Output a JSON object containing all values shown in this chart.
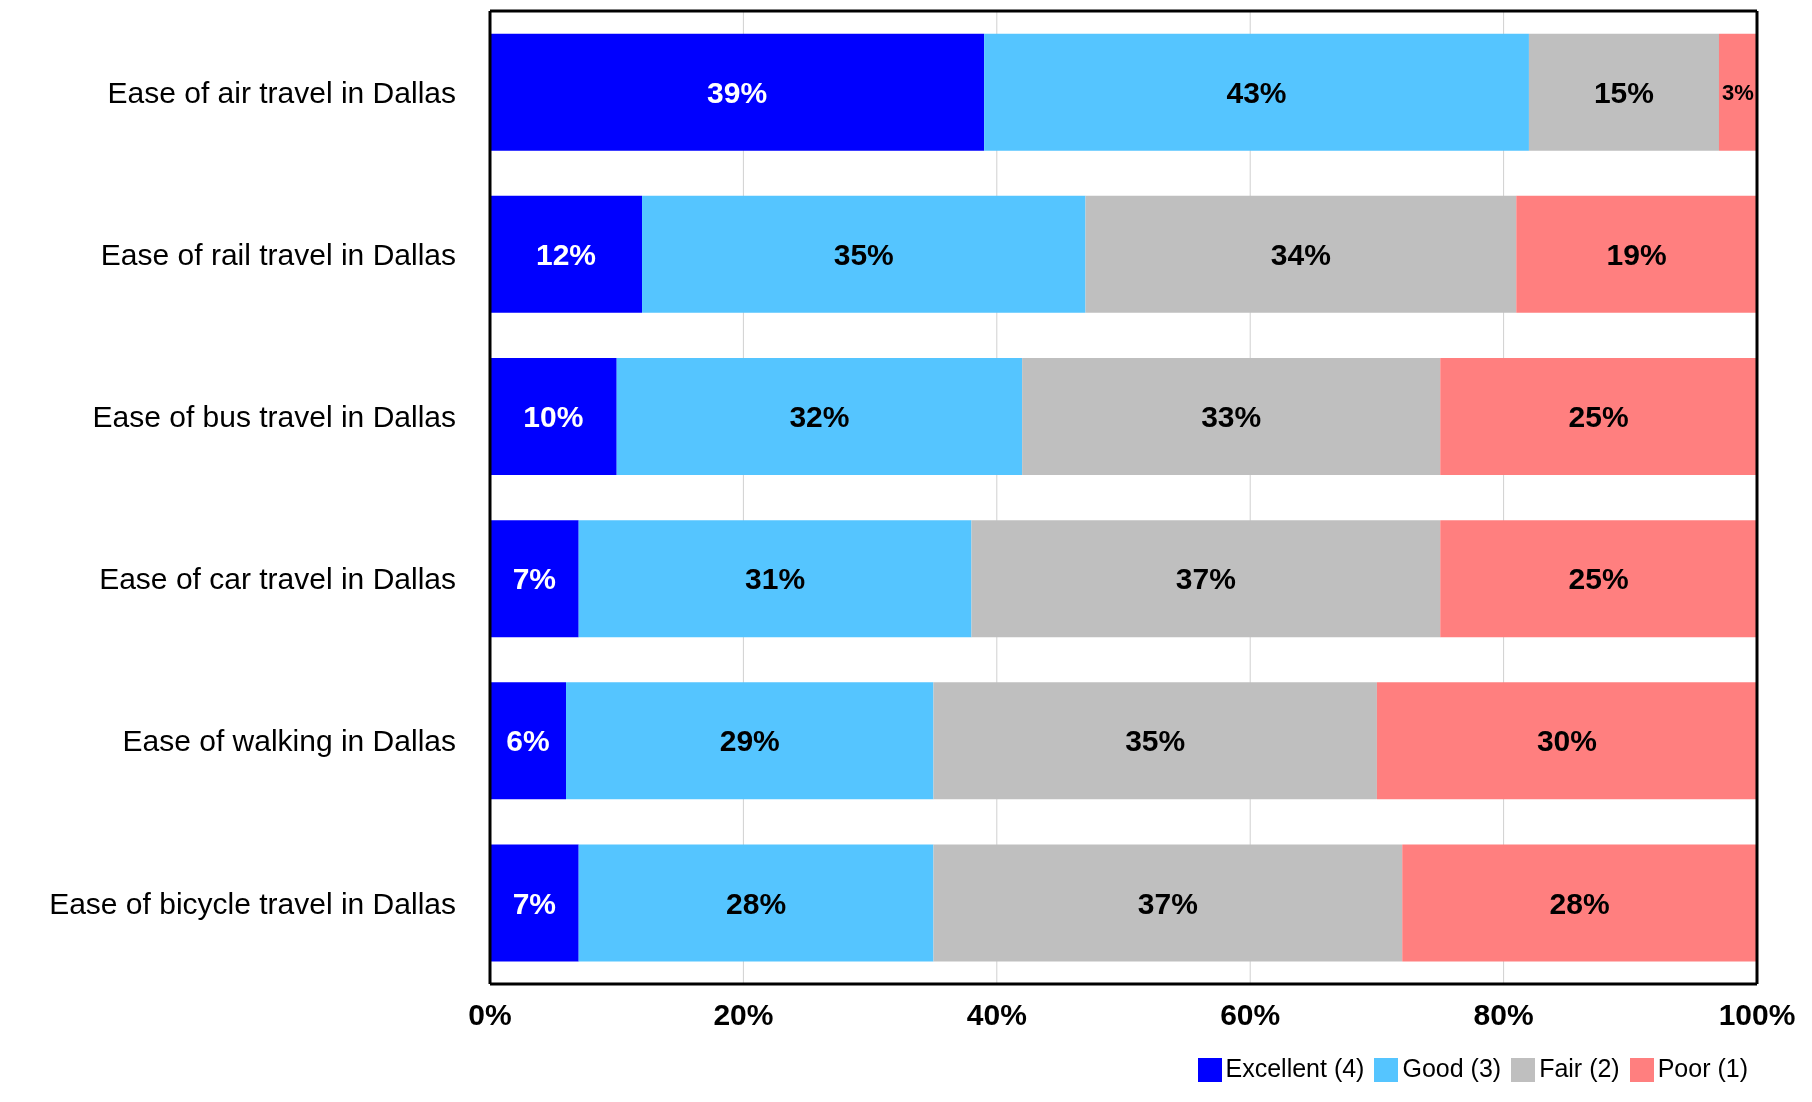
{
  "chart_data": {
    "type": "bar",
    "orientation": "horizontal",
    "stacked": true,
    "categories": [
      "Ease of air travel in Dallas",
      "Ease of rail travel in Dallas",
      "Ease of bus travel in Dallas",
      "Ease of car travel in Dallas",
      "Ease of walking in Dallas",
      "Ease of bicycle travel in Dallas"
    ],
    "series": [
      {
        "name": "Excellent (4)",
        "color": "#0000ff",
        "values": [
          39,
          12,
          10,
          7,
          6,
          7
        ],
        "value_labels": [
          "39%",
          "12%",
          "10%",
          "7%",
          "6%",
          "7%"
        ]
      },
      {
        "name": "Good (3)",
        "color": "#55c5ff",
        "values": [
          43,
          35,
          32,
          31,
          29,
          28
        ],
        "value_labels": [
          "43%",
          "35%",
          "32%",
          "31%",
          "29%",
          "28%"
        ]
      },
      {
        "name": "Fair (2)",
        "color": "#bfbfbf",
        "values": [
          15,
          34,
          33,
          37,
          35,
          37
        ],
        "value_labels": [
          "15%",
          "34%",
          "33%",
          "37%",
          "35%",
          "37%"
        ]
      },
      {
        "name": "Poor (1)",
        "color": "#ff7f7f",
        "values": [
          3,
          19,
          25,
          25,
          30,
          28
        ],
        "value_labels": [
          "3%",
          "19%",
          "25%",
          "25%",
          "30%",
          "28%"
        ]
      }
    ],
    "xlim": [
      0,
      100
    ],
    "xticks": [
      {
        "value": 0,
        "label": "0%"
      },
      {
        "value": 20,
        "label": "20%"
      },
      {
        "value": 40,
        "label": "40%"
      },
      {
        "value": 60,
        "label": "60%"
      },
      {
        "value": 80,
        "label": "80%"
      },
      {
        "value": 100,
        "label": "100%"
      }
    ],
    "grid": "x",
    "legend": "bottom right"
  }
}
